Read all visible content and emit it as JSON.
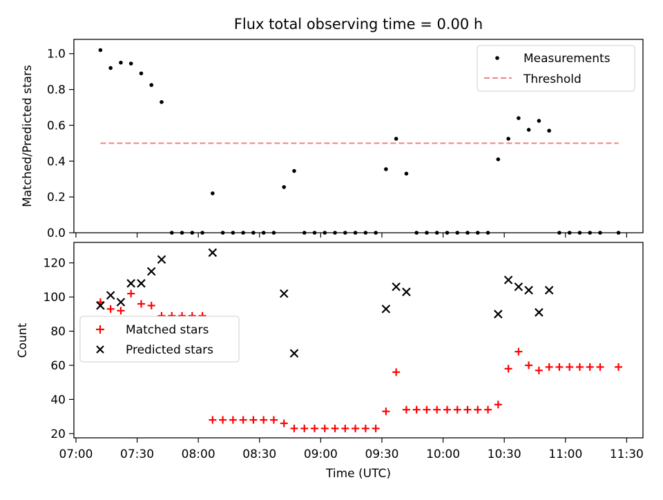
{
  "figure": {
    "title": "Flux total observing time = 0.00 h"
  },
  "chart_data": [
    {
      "type": "scatter",
      "title": "Flux total observing time = 0.00 h",
      "ylabel": "Matched/Predicted stars",
      "xlabel": "",
      "ylim": [
        0,
        1.08
      ],
      "yticks": [
        "0.0",
        "0.2",
        "0.4",
        "0.6",
        "0.8",
        "1.0"
      ],
      "legend_position": "top-right",
      "series": [
        {
          "name": "Measurements",
          "kind": "points",
          "color": "#000000",
          "x": [
            "07:12",
            "07:17",
            "07:22",
            "07:27",
            "07:32",
            "07:37",
            "07:42",
            "07:47",
            "07:52",
            "07:57",
            "08:02",
            "08:07",
            "08:12",
            "08:17",
            "08:22",
            "08:27",
            "08:32",
            "08:37",
            "08:42",
            "08:47",
            "08:52",
            "08:57",
            "09:02",
            "09:07",
            "09:12",
            "09:17",
            "09:22",
            "09:27",
            "09:32",
            "09:37",
            "09:42",
            "09:47",
            "09:52",
            "09:57",
            "10:02",
            "10:07",
            "10:12",
            "10:17",
            "10:22",
            "10:27",
            "10:32",
            "10:37",
            "10:42",
            "10:47",
            "10:52",
            "10:57",
            "11:02",
            "11:07",
            "11:12",
            "11:17",
            "11:26"
          ],
          "y": [
            1.02,
            0.92,
            0.95,
            0.945,
            0.89,
            0.825,
            0.73,
            0,
            0,
            0,
            0,
            0.22,
            0,
            0,
            0,
            0,
            0,
            0,
            0.255,
            0.345,
            0,
            0,
            0,
            0,
            0,
            0,
            0,
            0,
            0.355,
            0.525,
            0.33,
            0,
            0,
            0,
            0,
            0,
            0,
            0,
            0,
            0.41,
            0.525,
            0.64,
            0.575,
            0.625,
            0.57,
            0,
            0,
            0,
            0,
            0,
            0
          ]
        },
        {
          "name": "Threshold",
          "kind": "dashed-line",
          "color": "#f08080",
          "x": [
            "07:12",
            "11:26"
          ],
          "y": [
            0.5,
            0.5
          ]
        }
      ]
    },
    {
      "type": "scatter",
      "xlabel": "Time (UTC)",
      "ylabel": "Count",
      "ylim": [
        17.5,
        132
      ],
      "yticks": [
        "20",
        "40",
        "60",
        "80",
        "100",
        "120"
      ],
      "xlim": [
        "06:59",
        "11:38"
      ],
      "xticks": [
        "07:00",
        "07:30",
        "08:00",
        "08:30",
        "09:00",
        "09:30",
        "10:00",
        "10:30",
        "11:00",
        "11:30"
      ],
      "legend_position": "center-left",
      "series": [
        {
          "name": "Matched stars",
          "kind": "plus",
          "color": "#ff0000",
          "x": [
            "07:12",
            "07:17",
            "07:22",
            "07:27",
            "07:32",
            "07:37",
            "07:42",
            "07:47",
            "07:52",
            "07:57",
            "08:02",
            "08:07",
            "08:12",
            "08:17",
            "08:22",
            "08:27",
            "08:32",
            "08:37",
            "08:42",
            "08:47",
            "08:52",
            "08:57",
            "09:02",
            "09:07",
            "09:12",
            "09:17",
            "09:22",
            "09:27",
            "09:32",
            "09:37",
            "09:42",
            "09:47",
            "09:52",
            "09:57",
            "10:02",
            "10:07",
            "10:12",
            "10:17",
            "10:22",
            "10:27",
            "10:32",
            "10:37",
            "10:42",
            "10:47",
            "10:52",
            "10:57",
            "11:02",
            "11:07",
            "11:12",
            "11:17",
            "11:26"
          ],
          "y": [
            97,
            93,
            92,
            102,
            96,
            95,
            89,
            89,
            89,
            89,
            89,
            28,
            28,
            28,
            28,
            28,
            28,
            28,
            26,
            23,
            23,
            23,
            23,
            23,
            23,
            23,
            23,
            23,
            33,
            56,
            34,
            34,
            34,
            34,
            34,
            34,
            34,
            34,
            34,
            37,
            58,
            68,
            60,
            57,
            59,
            59,
            59,
            59,
            59,
            59,
            59
          ]
        },
        {
          "name": "Predicted stars",
          "kind": "cross",
          "color": "#000000",
          "x": [
            "07:12",
            "07:17",
            "07:22",
            "07:27",
            "07:32",
            "07:37",
            "07:42",
            "08:07",
            "08:42",
            "08:47",
            "09:32",
            "09:37",
            "09:42",
            "10:27",
            "10:32",
            "10:37",
            "10:42",
            "10:47",
            "10:52"
          ],
          "y": [
            95,
            101,
            97,
            108,
            108,
            115,
            122,
            126,
            102,
            67,
            93,
            106,
            103,
            90,
            110,
            106,
            104,
            91,
            104
          ]
        }
      ]
    }
  ]
}
